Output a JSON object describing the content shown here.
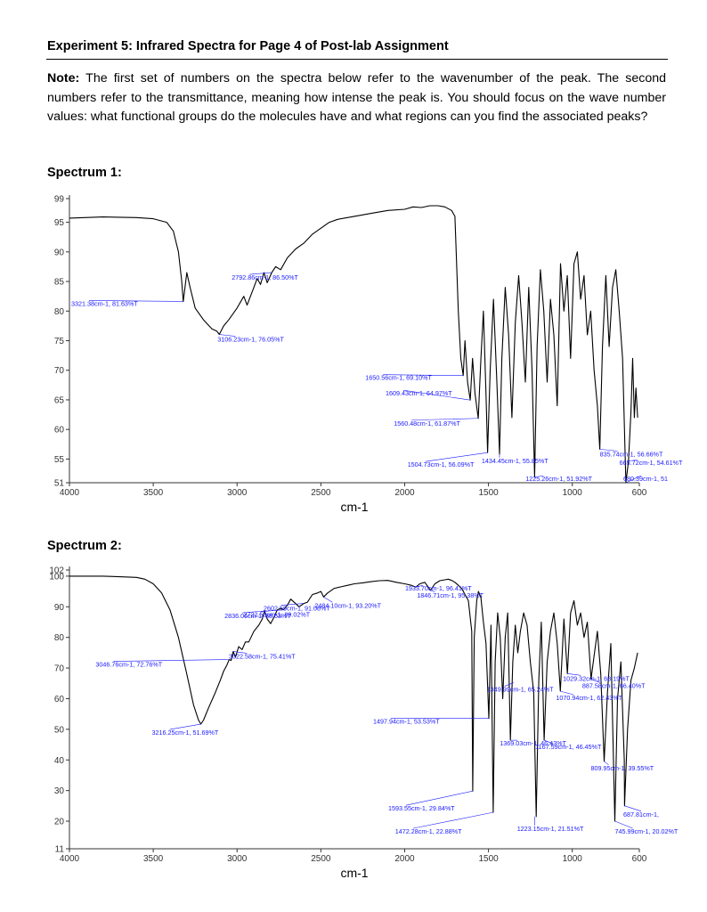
{
  "heading": "Experiment 5: Infrared Spectra for Page 4 of Post-lab Assignment",
  "note": {
    "label": "Note:",
    "text": " The first set of numbers on the spectra below refer to the wavenumber of the peak. The second numbers refer to the transmittance, meaning how intense the peak is. You should focus on the wave number values: what functional groups do the molecules have and what regions can you find the associated peaks?"
  },
  "colors": {
    "trace": "#000000",
    "annotation": "#1a1aff",
    "axis": "#333333"
  },
  "chart_data": [
    {
      "type": "line",
      "title": "Spectrum 1:",
      "xlabel": "cm-1",
      "ylabel": "",
      "xlim": [
        4000,
        600
      ],
      "ylim": [
        51,
        99
      ],
      "x_reversed": true,
      "x_ticks": [
        4000,
        3500,
        3000,
        2500,
        2000,
        1500,
        1000,
        600
      ],
      "y_ticks": [
        51,
        55,
        60,
        65,
        70,
        75,
        80,
        85,
        90,
        95,
        99
      ],
      "grid": false,
      "series": [
        {
          "x": [
            4000,
            3800,
            3600,
            3500,
            3420,
            3380,
            3350,
            3330,
            3321,
            3300,
            3280,
            3250,
            3200,
            3150,
            3120,
            3106,
            3080,
            3050,
            3000,
            2960,
            2940,
            2900,
            2880,
            2860,
            2840,
            2820,
            2793,
            2770,
            2740,
            2700,
            2650,
            2600,
            2550,
            2500,
            2450,
            2400,
            2300,
            2200,
            2100,
            2000,
            1950,
            1900,
            1850,
            1800,
            1760,
            1720,
            1700,
            1680,
            1665,
            1651,
            1640,
            1625,
            1609,
            1595,
            1580,
            1561,
            1545,
            1530,
            1515,
            1505,
            1490,
            1470,
            1450,
            1434,
            1420,
            1400,
            1380,
            1360,
            1340,
            1320,
            1300,
            1280,
            1260,
            1240,
            1225,
            1210,
            1190,
            1170,
            1150,
            1130,
            1110,
            1090,
            1070,
            1050,
            1030,
            1010,
            990,
            970,
            950,
            930,
            910,
            890,
            870,
            850,
            836,
            820,
            800,
            780,
            760,
            740,
            720,
            700,
            680,
            665,
            650,
            640,
            630,
            620,
            610
          ],
          "y": [
            95.7,
            95.9,
            95.8,
            95.6,
            95.0,
            93.5,
            90.0,
            85.0,
            81.6,
            86.5,
            84.0,
            80.5,
            78.5,
            77.0,
            76.6,
            76.05,
            77.5,
            78.5,
            80.5,
            82.5,
            81.0,
            84.0,
            85.5,
            84.5,
            86.5,
            84.8,
            86.5,
            87.5,
            87.0,
            89.0,
            90.5,
            91.5,
            93.0,
            94.0,
            95.0,
            95.5,
            96.0,
            96.5,
            97.0,
            97.2,
            97.6,
            97.5,
            97.8,
            97.8,
            97.6,
            97.0,
            96.0,
            80.0,
            72.0,
            69.1,
            75.0,
            68.0,
            64.97,
            72.0,
            66.0,
            61.87,
            72.0,
            80.0,
            66.0,
            56.09,
            70.0,
            82.0,
            68.0,
            55.85,
            72.0,
            84.0,
            76.0,
            62.0,
            78.0,
            86.0,
            78.0,
            68.0,
            84.0,
            70.0,
            51.92,
            74.0,
            87.0,
            80.0,
            68.0,
            82.0,
            76.0,
            64.0,
            88.0,
            80.0,
            86.0,
            72.0,
            88.0,
            90.0,
            82.0,
            86.0,
            76.0,
            80.0,
            70.0,
            64.0,
            56.66,
            74.0,
            86.0,
            74.0,
            84.0,
            87.0,
            80.0,
            72.0,
            51.0,
            54.61,
            63.0,
            72.0,
            62.0,
            67.0,
            62.0
          ]
        }
      ],
      "annotations": [
        {
          "x": 3321.38,
          "y": 81.63,
          "label": "3321.38cm-1, 81.63%T"
        },
        {
          "x": 3106.23,
          "y": 76.05,
          "label": "3106.23cm-1, 76.05%T"
        },
        {
          "x": 2792.86,
          "y": 86.5,
          "label": "2792.86cm-1, 86.50%T"
        },
        {
          "x": 1650.56,
          "y": 69.1,
          "label": "1650.56cm-1, 69.10%T"
        },
        {
          "x": 1609.43,
          "y": 64.97,
          "label": "1609.43cm-1, 64.97%T"
        },
        {
          "x": 1560.48,
          "y": 61.87,
          "label": "1560.48cm-1, 61.87%T"
        },
        {
          "x": 1434.45,
          "y": 55.85,
          "label": "1434.45cm-1, 55.85%T"
        },
        {
          "x": 1504.73,
          "y": 56.09,
          "label": "1504.73cm-1, 56.09%T"
        },
        {
          "x": 1225.26,
          "y": 51.92,
          "label": "1225.26cm-1, 51.92%T"
        },
        {
          "x": 835.74,
          "y": 56.66,
          "label": "835.74cm-1, 56.66%T"
        },
        {
          "x": 680.39,
          "y": 51.0,
          "label": "680.39cm-1, 51"
        },
        {
          "x": 665.72,
          "y": 54.61,
          "label": "665.72cm-1, 54.61%T"
        }
      ]
    },
    {
      "type": "line",
      "title": "Spectrum 2:",
      "xlabel": "cm-1",
      "ylabel": "",
      "xlim": [
        4000,
        600
      ],
      "ylim": [
        11,
        102
      ],
      "x_reversed": true,
      "x_ticks": [
        4000,
        3500,
        3000,
        2500,
        2000,
        1500,
        1000,
        600
      ],
      "y_ticks": [
        11,
        20,
        30,
        40,
        50,
        60,
        70,
        80,
        90,
        100,
        102
      ],
      "grid": false,
      "series": [
        {
          "x": [
            4000,
            3800,
            3700,
            3600,
            3550,
            3500,
            3450,
            3400,
            3350,
            3300,
            3260,
            3230,
            3216,
            3200,
            3170,
            3130,
            3100,
            3080,
            3060,
            3047,
            3035,
            3023,
            3010,
            2990,
            2970,
            2950,
            2930,
            2900,
            2870,
            2850,
            2836,
            2820,
            2800,
            2780,
            2760,
            2740,
            2723,
            2700,
            2680,
            2650,
            2630,
            2602,
            2580,
            2550,
            2520,
            2500,
            2484,
            2460,
            2420,
            2380,
            2340,
            2300,
            2250,
            2200,
            2150,
            2100,
            2050,
            2000,
            1960,
            1933,
            1910,
            1880,
            1846,
            1820,
            1790,
            1760,
            1740,
            1720,
            1700,
            1680,
            1660,
            1640,
            1620,
            1600,
            1594,
            1585,
            1570,
            1560,
            1545,
            1530,
            1515,
            1498,
            1485,
            1472,
            1460,
            1445,
            1430,
            1415,
            1400,
            1385,
            1369,
            1355,
            1340,
            1325,
            1310,
            1290,
            1270,
            1250,
            1230,
            1215,
            1200,
            1185,
            1168,
            1150,
            1130,
            1110,
            1090,
            1071,
            1050,
            1029,
            1010,
            990,
            970,
            950,
            930,
            910,
            888,
            870,
            850,
            830,
            810,
            790,
            770,
            746,
            730,
            710,
            690,
            688,
            670,
            650,
            630,
            610
          ],
          "y": [
            100.0,
            100.0,
            99.8,
            99.6,
            99.0,
            97.5,
            94.5,
            89.0,
            80.0,
            68.0,
            58.0,
            53.0,
            51.69,
            53.0,
            57.0,
            62.0,
            66.0,
            69.0,
            71.0,
            72.76,
            72.5,
            75.41,
            73.5,
            77.0,
            76.0,
            78.5,
            78.5,
            82.0,
            84.0,
            86.0,
            88.63,
            86.0,
            84.5,
            86.5,
            89.0,
            89.5,
            89.02,
            90.5,
            92.5,
            91.0,
            90.0,
            91.08,
            91.5,
            94.0,
            94.5,
            95.0,
            93.2,
            94.5,
            96.0,
            96.5,
            97.0,
            97.5,
            97.8,
            98.2,
            98.5,
            98.6,
            98.0,
            97.5,
            97.0,
            96.41,
            97.5,
            98.0,
            95.38,
            97.5,
            98.5,
            98.8,
            99.0,
            98.6,
            98.0,
            97.0,
            96.0,
            94.0,
            92.0,
            82.0,
            29.84,
            80.0,
            92.0,
            95.0,
            93.0,
            85.0,
            78.0,
            53.53,
            84.0,
            22.88,
            72.0,
            88.0,
            80.0,
            60.0,
            80.0,
            88.0,
            46.43,
            72.0,
            84.0,
            75.0,
            82.0,
            88.0,
            84.0,
            72.0,
            62.0,
            21.51,
            66.0,
            85.0,
            46.45,
            72.0,
            82.0,
            88.0,
            78.0,
            62.43,
            86.0,
            68.19,
            88.0,
            92.0,
            84.0,
            88.0,
            80.0,
            85.0,
            66.4,
            74.0,
            82.0,
            68.0,
            39.55,
            62.0,
            78.0,
            20.02,
            60.0,
            72.0,
            40.0,
            25.0,
            50.0,
            66.0,
            70.0,
            75.0
          ]
        }
      ],
      "annotations": [
        {
          "x": 3216.25,
          "y": 51.69,
          "label": "3216.25cm-1, 51.69%T"
        },
        {
          "x": 3046.76,
          "y": 72.76,
          "label": "3046.76cm-1, 72.76%T"
        },
        {
          "x": 3022.58,
          "y": 75.41,
          "label": "3022.58cm-1, 75.41%T"
        },
        {
          "x": 2836.06,
          "y": 88.63,
          "label": "2836.06cm-1, 88.63%T"
        },
        {
          "x": 2722.53,
          "y": 89.02,
          "label": "2722.53cm-1, 89.02%T"
        },
        {
          "x": 2602.59,
          "y": 91.08,
          "label": "2602.59cm-1, 91.08%T"
        },
        {
          "x": 2484.1,
          "y": 93.2,
          "label": "2484.10cm-1, 93.20%T"
        },
        {
          "x": 1933.7,
          "y": 96.41,
          "label": "1933.70cm-1, 96.41%T"
        },
        {
          "x": 1846.71,
          "y": 95.38,
          "label": "1846.71cm-1, 95.38%T"
        },
        {
          "x": 1593.55,
          "y": 29.84,
          "label": "1593.55cm-1, 29.84%T"
        },
        {
          "x": 1497.94,
          "y": 53.53,
          "label": "1497.94cm-1, 53.53%T"
        },
        {
          "x": 1472.28,
          "y": 22.88,
          "label": "1472.28cm-1, 22.88%T"
        },
        {
          "x": 1369.03,
          "y": 46.43,
          "label": "1369.03cm-1, 46.43%T"
        },
        {
          "x": 1349.99,
          "y": 65.24,
          "label": "1349.99cm-1, 65.24%T"
        },
        {
          "x": 1223.15,
          "y": 21.51,
          "label": "1223.15cm-1, 21.51%T"
        },
        {
          "x": 1167.59,
          "y": 46.45,
          "label": "1167.59cm-1, 46.45%T"
        },
        {
          "x": 1070.94,
          "y": 62.43,
          "label": "1070.94cm-1, 62.43%T"
        },
        {
          "x": 1029.32,
          "y": 68.19,
          "label": "1029.32cm-1, 68.19%T"
        },
        {
          "x": 887.58,
          "y": 66.4,
          "label": "887.58cm-1, 66.40%T"
        },
        {
          "x": 809.95,
          "y": 39.55,
          "label": "809.95cm-1, 39.55%T"
        },
        {
          "x": 745.99,
          "y": 20.02,
          "label": "745.99cm-1, 20.02%T"
        },
        {
          "x": 687.81,
          "y": 25.0,
          "label": "687.81cm-1,"
        }
      ]
    }
  ]
}
